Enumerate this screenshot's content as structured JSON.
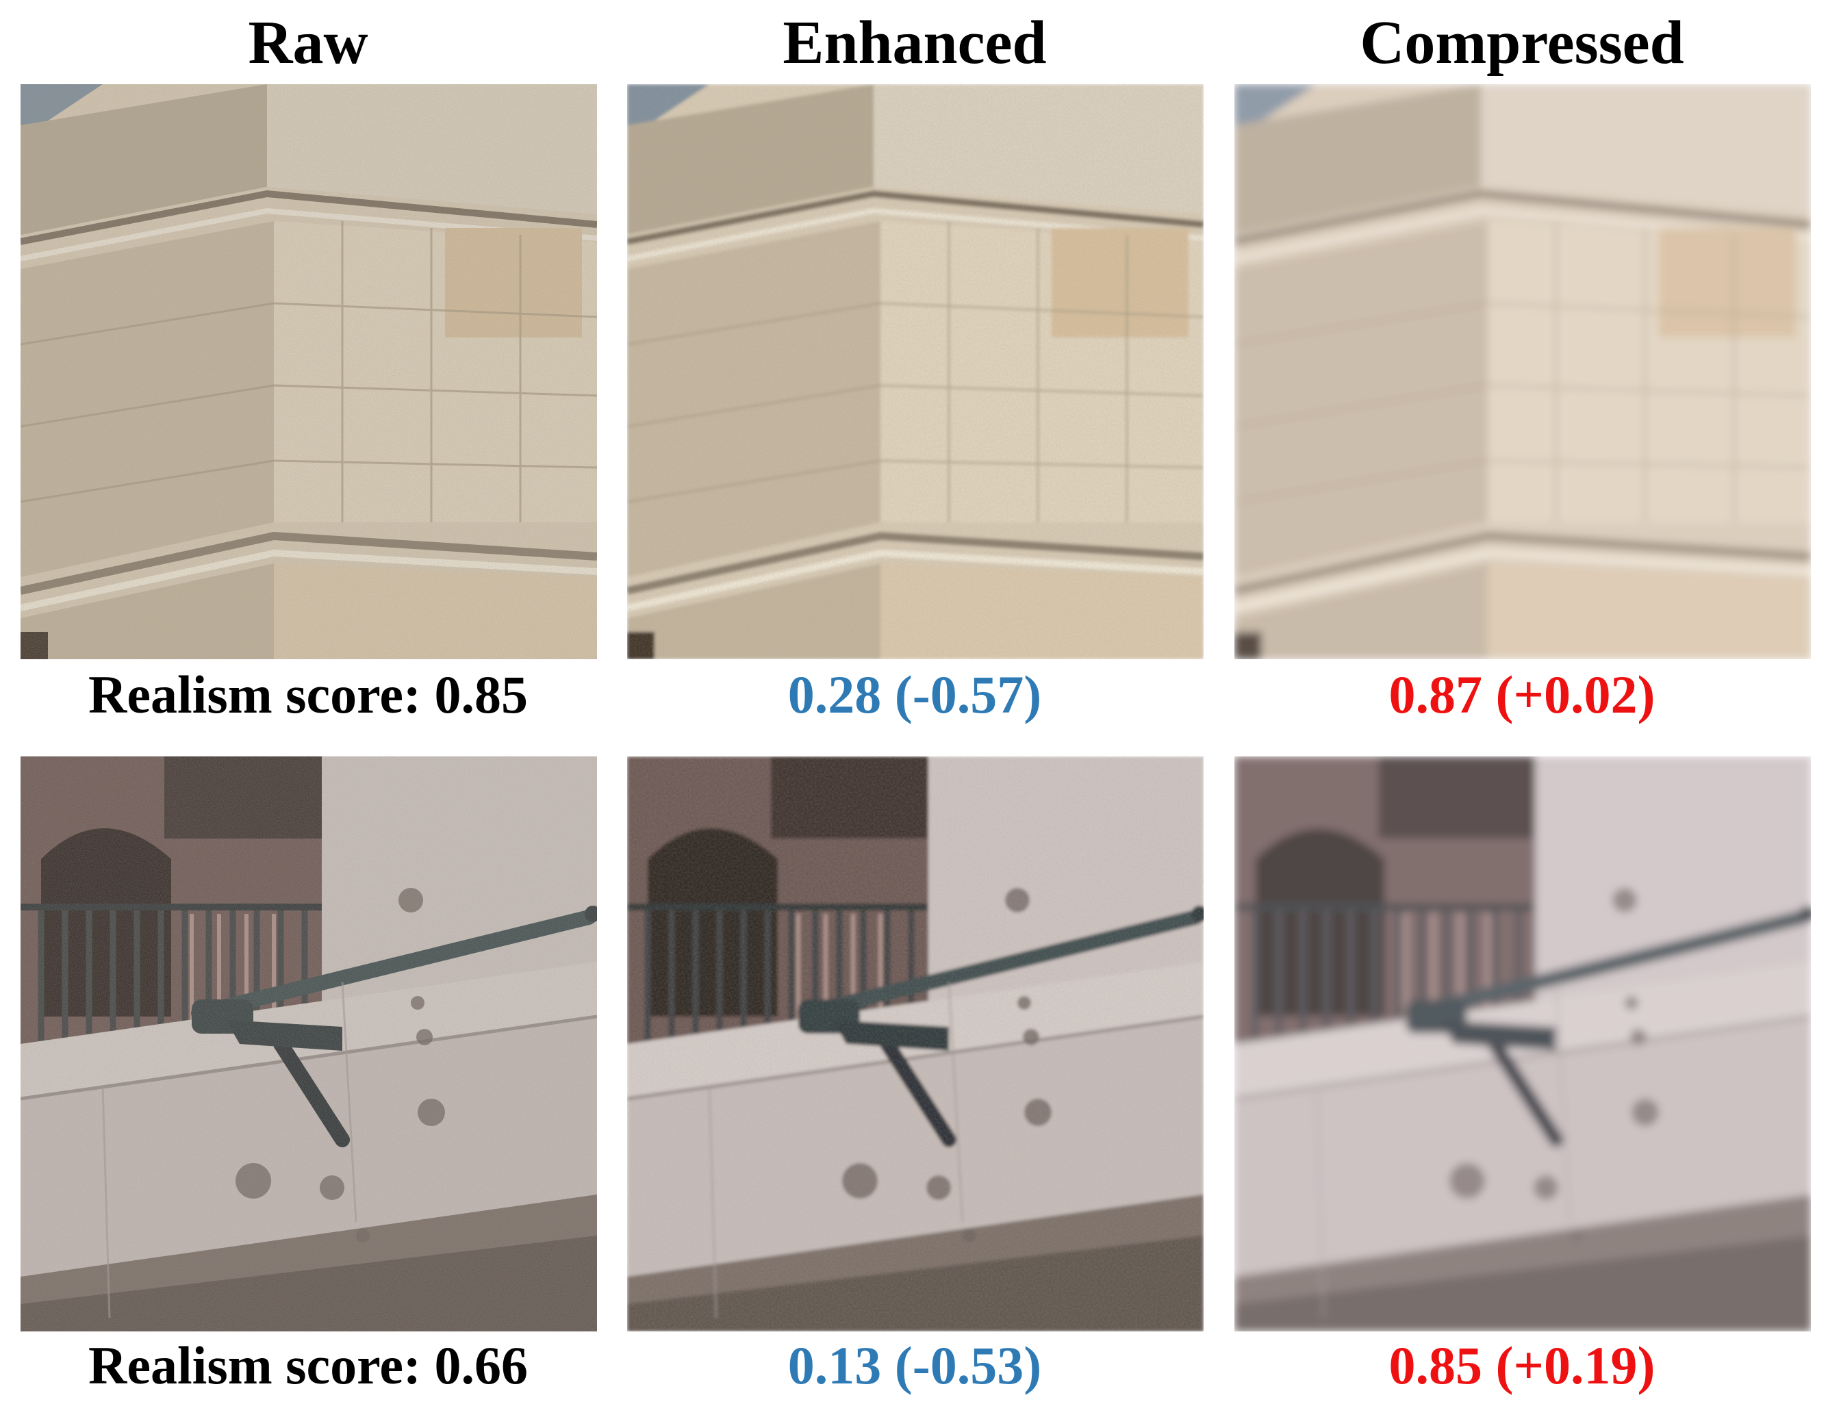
{
  "columns": [
    {
      "title": "Raw"
    },
    {
      "title": "Enhanced"
    },
    {
      "title": "Compressed"
    }
  ],
  "rows": [
    {
      "scene": "building-corner",
      "scores": [
        {
          "text": "Realism score: 0.85",
          "color": "#000000"
        },
        {
          "text": "0.28 (-0.57)",
          "color": "#2e7ab5"
        },
        {
          "text": "0.87 (+0.02)",
          "color": "#ee1111"
        }
      ]
    },
    {
      "scene": "balcony-wall",
      "scores": [
        {
          "text": "Realism score: 0.66",
          "color": "#000000"
        },
        {
          "text": "0.13 (-0.53)",
          "color": "#2e7ab5"
        },
        {
          "text": "0.85 (+0.19)",
          "color": "#ee1111"
        }
      ]
    }
  ]
}
